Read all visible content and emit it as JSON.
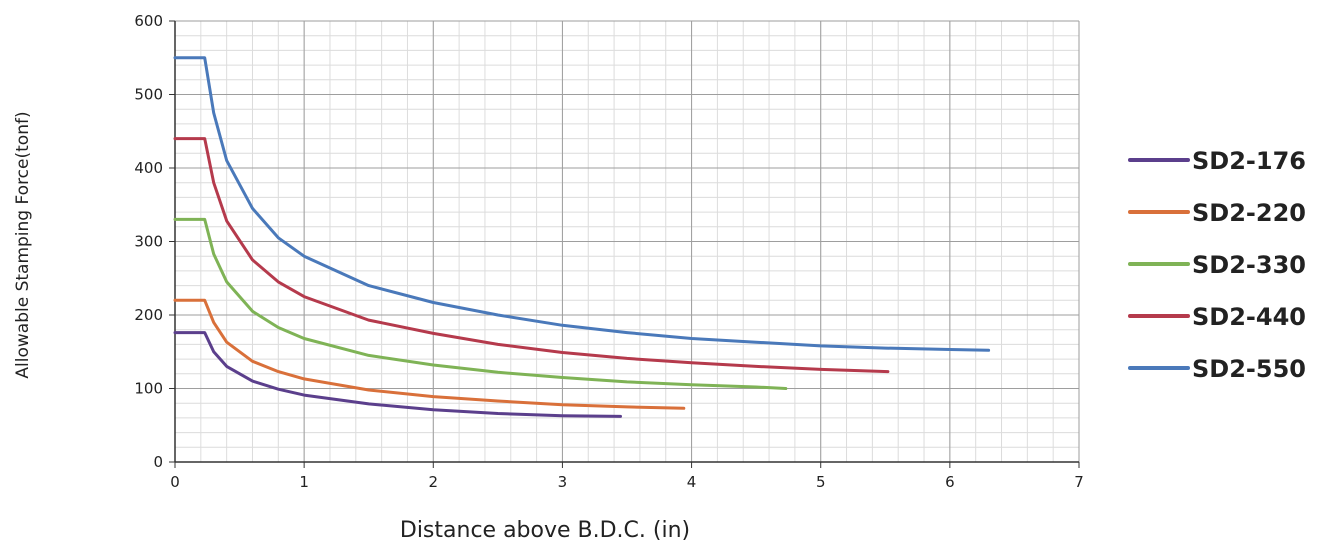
{
  "chart_data": {
    "type": "line",
    "title": "",
    "xlabel": "Distance above B.D.C. (in)",
    "ylabel": "Allowable Stamping Force(tonf)",
    "xlim": [
      0,
      7
    ],
    "ylim": [
      0,
      600
    ],
    "x_ticks": [
      "0",
      "1",
      "2",
      "3",
      "4",
      "5",
      "6",
      "7"
    ],
    "y_ticks": [
      "0",
      "100",
      "200",
      "300",
      "400",
      "500",
      "600"
    ],
    "grid": true,
    "legend_position": "right",
    "series": [
      {
        "name": "SD2-176",
        "color": "#5b3f8c",
        "x": [
          0,
          0.23,
          0.3,
          0.4,
          0.6,
          0.8,
          1.0,
          1.5,
          2.0,
          2.5,
          3.0,
          3.45
        ],
        "y": [
          176,
          176,
          150,
          130,
          110,
          99,
          91,
          79,
          71,
          66,
          63,
          62
        ]
      },
      {
        "name": "SD2-220",
        "color": "#d9703a",
        "x": [
          0,
          0.23,
          0.3,
          0.4,
          0.6,
          0.8,
          1.0,
          1.5,
          2.0,
          2.5,
          3.0,
          3.5,
          3.94
        ],
        "y": [
          220,
          220,
          190,
          163,
          137,
          123,
          113,
          98,
          89,
          83,
          78,
          75,
          73
        ]
      },
      {
        "name": "SD2-330",
        "color": "#7fb356",
        "x": [
          0,
          0.23,
          0.3,
          0.4,
          0.6,
          0.8,
          1.0,
          1.5,
          2.0,
          2.5,
          3.0,
          3.5,
          4.0,
          4.5,
          4.73
        ],
        "y": [
          330,
          330,
          283,
          245,
          205,
          183,
          168,
          145,
          132,
          122,
          115,
          109,
          105,
          102,
          100
        ]
      },
      {
        "name": "SD2-440",
        "color": "#b53a4c",
        "x": [
          0,
          0.23,
          0.3,
          0.4,
          0.6,
          0.8,
          1.0,
          1.5,
          2.0,
          2.5,
          3.0,
          3.5,
          4.0,
          4.5,
          5.0,
          5.52
        ],
        "y": [
          440,
          440,
          380,
          328,
          275,
          245,
          225,
          193,
          175,
          160,
          149,
          141,
          135,
          130,
          126,
          123
        ]
      },
      {
        "name": "SD2-550",
        "color": "#4a79ba",
        "x": [
          0,
          0.23,
          0.3,
          0.4,
          0.6,
          0.8,
          1.0,
          1.5,
          2.0,
          2.5,
          3.0,
          3.5,
          4.0,
          4.5,
          5.0,
          5.5,
          6.0,
          6.3
        ],
        "y": [
          550,
          550,
          475,
          410,
          345,
          305,
          280,
          240,
          217,
          200,
          186,
          176,
          168,
          163,
          158,
          155,
          153,
          152
        ]
      }
    ]
  }
}
